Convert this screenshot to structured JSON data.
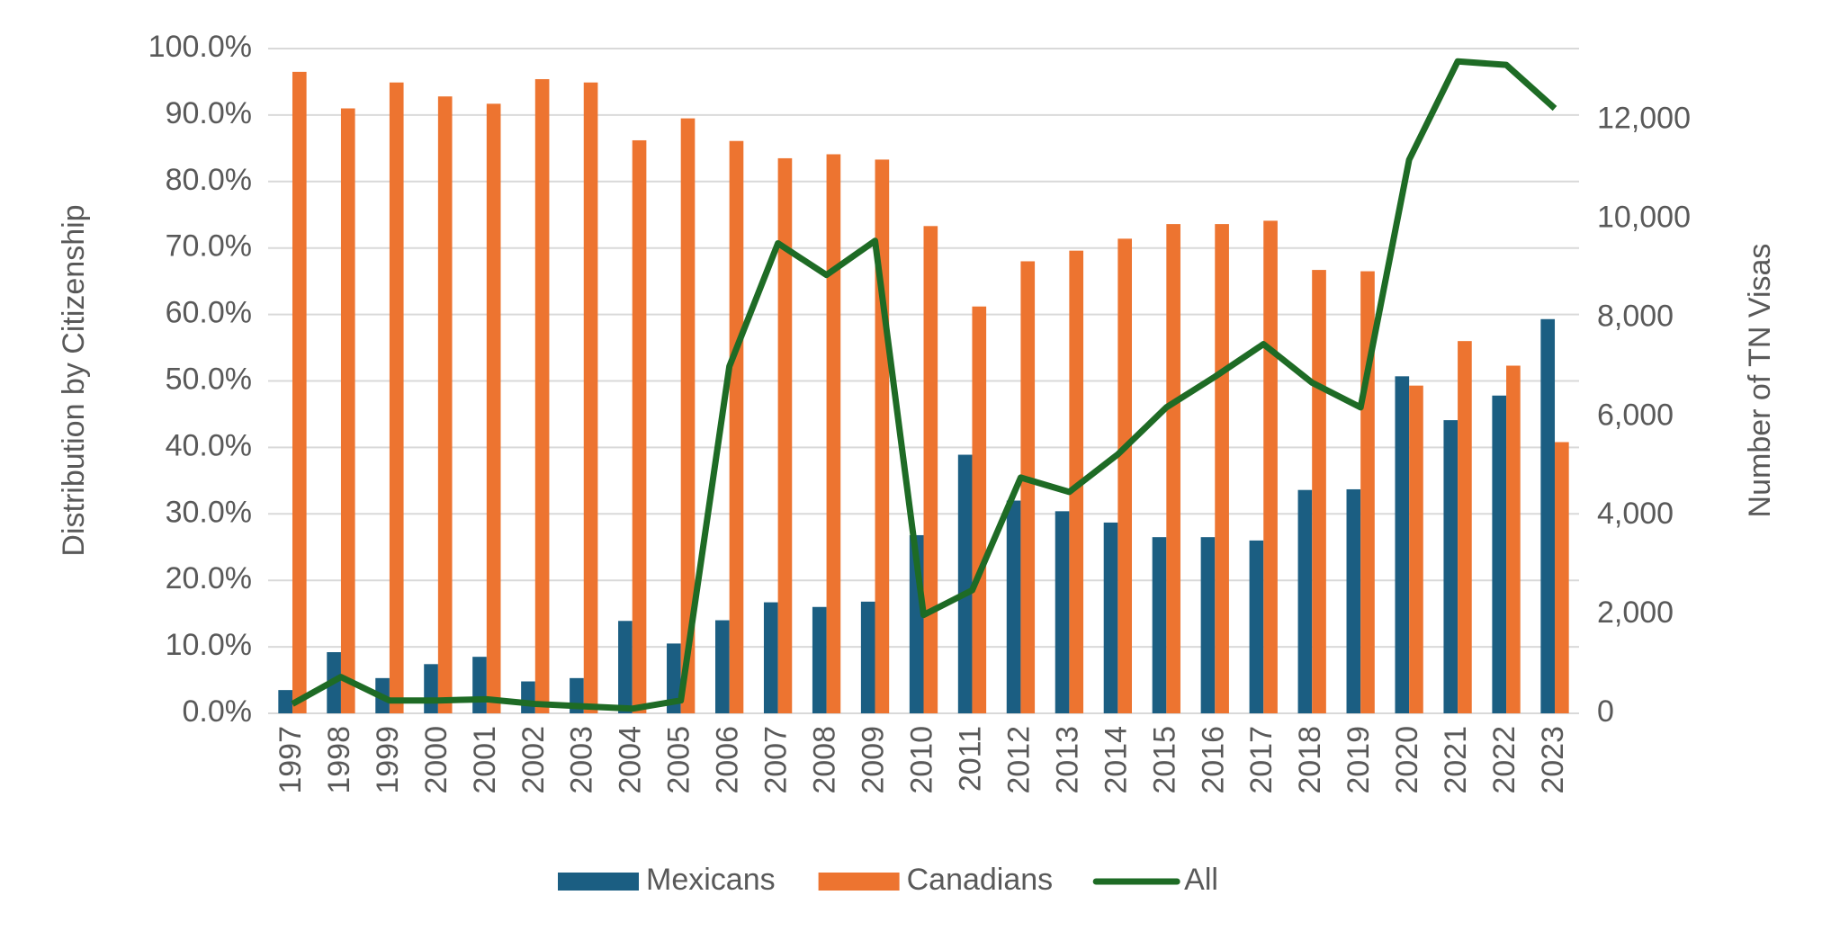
{
  "chart_data": {
    "type": "bar-line",
    "y_label": "Distribution by Citizenship",
    "y2_label": "Number of TN Visas",
    "categories": [
      "1997",
      "1998",
      "1999",
      "2000",
      "2001",
      "2002",
      "2003",
      "2004",
      "2005",
      "2006",
      "2007",
      "2008",
      "2009",
      "2010",
      "2011",
      "2012",
      "2013",
      "2014",
      "2015",
      "2016",
      "2017",
      "2018",
      "2019",
      "2020",
      "2021",
      "2022",
      "2023"
    ],
    "series": [
      {
        "name": "Mexicans",
        "type": "bar",
        "color": "#1b5e82",
        "values": [
          3.5,
          9.2,
          5.3,
          7.4,
          8.5,
          4.8,
          5.3,
          13.9,
          10.5,
          14,
          16.7,
          16,
          16.8,
          26.8,
          38.9,
          32,
          30.4,
          28.7,
          26.5,
          26.5,
          26,
          33.6,
          33.7,
          50.7,
          44.1,
          47.8,
          59.3
        ]
      },
      {
        "name": "Canadians",
        "type": "bar",
        "color": "#ed7430",
        "values": [
          96.5,
          91,
          94.9,
          92.8,
          91.7,
          95.4,
          94.9,
          86.2,
          89.5,
          86.1,
          83.5,
          84.1,
          83.3,
          73.3,
          61.2,
          68,
          69.6,
          71.4,
          73.6,
          73.6,
          74.1,
          66.7,
          66.5,
          49.3,
          56,
          52.3,
          40.8
        ]
      },
      {
        "name": "All",
        "type": "line",
        "axis": "y2",
        "color": "#1e6b25",
        "values": [
          190,
          735,
          260,
          260,
          285,
          190,
          140,
          95,
          260,
          7020,
          9510,
          8870,
          9560,
          1990,
          2490,
          4770,
          4480,
          5240,
          6190,
          6810,
          7470,
          6690,
          6190,
          11200,
          13190,
          13120,
          12240
        ]
      }
    ],
    "ylim": [
      0,
      100
    ],
    "yticks": [
      {
        "value": 0,
        "label": "0.0%"
      },
      {
        "value": 10,
        "label": "10.0%"
      },
      {
        "value": 20,
        "label": "20.0%"
      },
      {
        "value": 30,
        "label": "30.0%"
      },
      {
        "value": 40,
        "label": "40.0%"
      },
      {
        "value": 50,
        "label": "50.0%"
      },
      {
        "value": 60,
        "label": "60.0%"
      },
      {
        "value": 70,
        "label": "70.0%"
      },
      {
        "value": 80,
        "label": "80.0%"
      },
      {
        "value": 90,
        "label": "90.0%"
      },
      {
        "value": 100,
        "label": "100.0%"
      }
    ],
    "y2lim": [
      0,
      13450
    ],
    "y2ticks": [
      0,
      {
        "value": 2000,
        "label": "2,000"
      },
      {
        "value": 4000,
        "label": "4,000"
      },
      {
        "value": 6000,
        "label": "6,000"
      },
      {
        "value": 8000,
        "label": "8,000"
      },
      {
        "value": 10000,
        "label": "10,000"
      },
      {
        "value": 12000,
        "label": "12,000"
      }
    ],
    "grid": true,
    "legend": "bottom"
  }
}
